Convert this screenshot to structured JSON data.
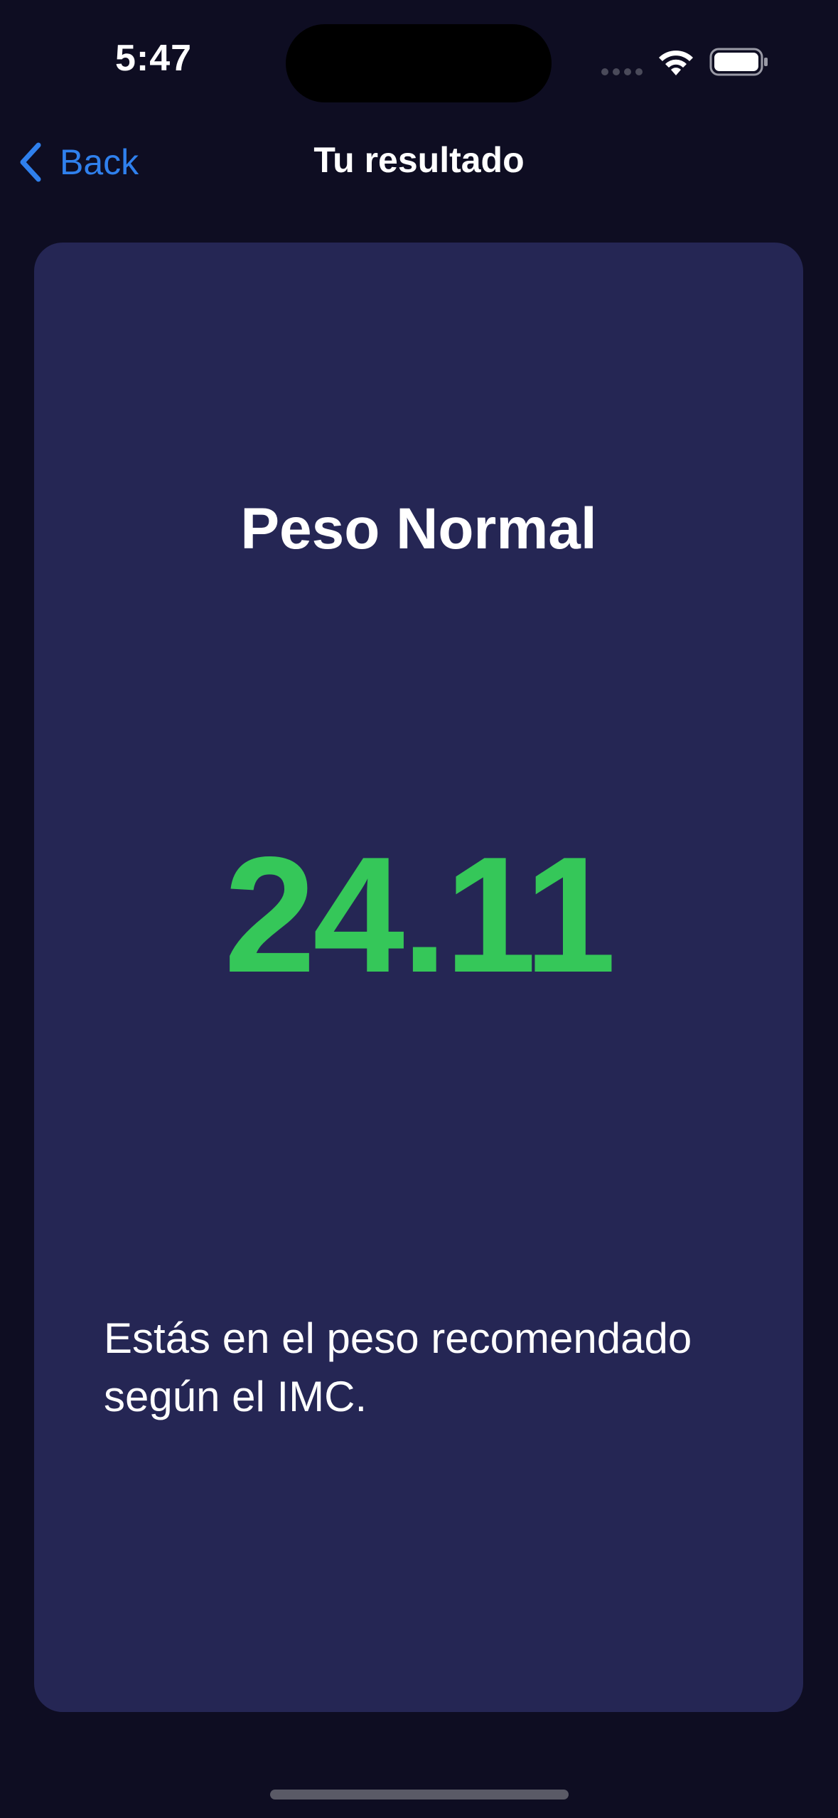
{
  "status_bar": {
    "time": "5:47"
  },
  "nav": {
    "back_label": "Back",
    "title": "Tu resultado"
  },
  "result": {
    "category": "Peso Normal",
    "value": "24.11",
    "description": "Estás en el peso recomendado según el IMC."
  },
  "colors": {
    "background": "#0e0d22",
    "card": "#252654",
    "accent_back": "#2f80ed",
    "value_green": "#35c759"
  },
  "icons": {
    "back": "chevron-left-icon",
    "wifi": "wifi-icon",
    "battery": "battery-icon",
    "signal": "cellular-signal-icon"
  }
}
